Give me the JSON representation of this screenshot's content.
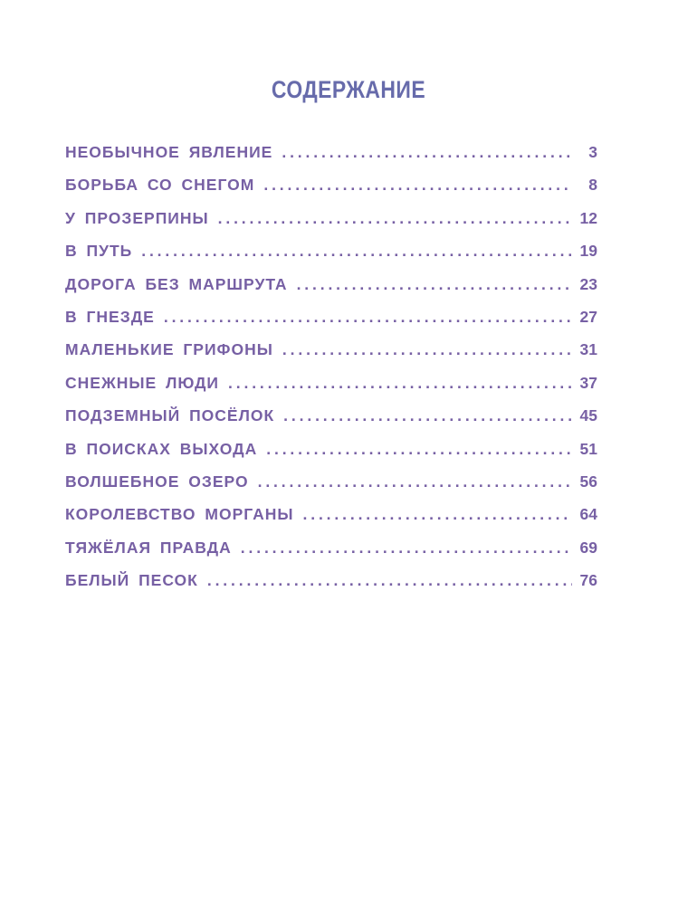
{
  "colors": {
    "title": "#676bab",
    "entries": "#7760a4"
  },
  "title": "СОДЕРЖАНИЕ",
  "entries": [
    {
      "label": "НЕОБЫЧНОЕ ЯВЛЕНИЕ",
      "page": "3"
    },
    {
      "label": "БОРЬБА СО СНЕГОМ",
      "page": "8"
    },
    {
      "label": "У ПРОЗЕРПИНЫ",
      "page": "12"
    },
    {
      "label": "В ПУТЬ",
      "page": "19"
    },
    {
      "label": "ДОРОГА БЕЗ МАРШРУТА",
      "page": "23"
    },
    {
      "label": "В ГНЕЗДЕ",
      "page": "27"
    },
    {
      "label": "МАЛЕНЬКИЕ ГРИФОНЫ",
      "page": "31"
    },
    {
      "label": "СНЕЖНЫЕ ЛЮДИ",
      "page": "37"
    },
    {
      "label": "ПОДЗЕМНЫЙ ПОСЁЛОК",
      "page": "45"
    },
    {
      "label": "В ПОИСКАХ ВЫХОДА",
      "page": "51"
    },
    {
      "label": "ВОЛШЕБНОЕ ОЗЕРО",
      "page": "56"
    },
    {
      "label": "КОРОЛЕВСТВО МОРГАНЫ",
      "page": "64"
    },
    {
      "label": "ТЯЖЁЛАЯ ПРАВДА",
      "page": "69"
    },
    {
      "label": "БЕЛЫЙ ПЕСОК",
      "page": "76"
    }
  ]
}
